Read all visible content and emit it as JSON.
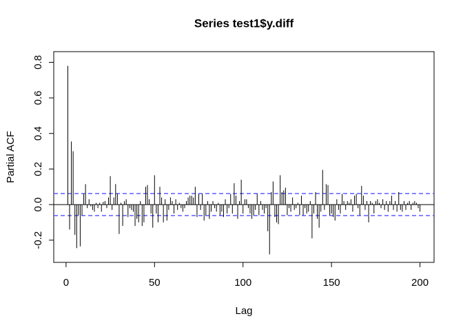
{
  "chart_data": {
    "type": "pacf",
    "title": "Series  test1$y.diff",
    "xlabel": "Lag",
    "ylabel": "Partial ACF",
    "x": [
      1,
      2,
      3,
      4,
      5,
      6,
      7,
      8,
      9,
      10,
      11,
      12,
      13,
      14,
      15,
      16,
      17,
      18,
      19,
      20,
      21,
      22,
      23,
      24,
      25,
      26,
      27,
      28,
      29,
      30,
      31,
      32,
      33,
      34,
      35,
      36,
      37,
      38,
      39,
      40,
      41,
      42,
      43,
      44,
      45,
      46,
      47,
      48,
      49,
      50,
      51,
      52,
      53,
      54,
      55,
      56,
      57,
      58,
      59,
      60,
      61,
      62,
      63,
      64,
      65,
      66,
      67,
      68,
      69,
      70,
      71,
      72,
      73,
      74,
      75,
      76,
      77,
      78,
      79,
      80,
      81,
      82,
      83,
      84,
      85,
      86,
      87,
      88,
      89,
      90,
      91,
      92,
      93,
      94,
      95,
      96,
      97,
      98,
      99,
      100,
      101,
      102,
      103,
      104,
      105,
      106,
      107,
      108,
      109,
      110,
      111,
      112,
      113,
      114,
      115,
      116,
      117,
      118,
      119,
      120,
      121,
      122,
      123,
      124,
      125,
      126,
      127,
      128,
      129,
      130,
      131,
      132,
      133,
      134,
      135,
      136,
      137,
      138,
      139,
      140,
      141,
      142,
      143,
      144,
      145,
      146,
      147,
      148,
      149,
      150,
      151,
      152,
      153,
      154,
      155,
      156,
      157,
      158,
      159,
      160,
      161,
      162,
      163,
      164,
      165,
      166,
      167,
      168,
      169,
      170,
      171,
      172,
      173,
      174,
      175,
      176,
      177,
      178,
      179,
      180,
      181,
      182,
      183,
      184,
      185,
      186,
      187,
      188,
      189,
      190,
      191,
      192,
      193,
      194,
      195,
      196,
      197,
      198,
      199,
      200
    ],
    "values": [
      0.78,
      -0.14,
      0.355,
      0.3,
      -0.17,
      -0.245,
      -0.06,
      -0.235,
      -0.06,
      0.06,
      0.115,
      -0.02,
      0.03,
      -0.01,
      -0.03,
      -0.04,
      0.01,
      -0.02,
      0.01,
      -0.04,
      0.015,
      0.02,
      -0.02,
      0.04,
      0.16,
      -0.03,
      0.04,
      0.115,
      0.06,
      -0.165,
      0.01,
      -0.12,
      0.02,
      0.03,
      -0.07,
      -0.02,
      -0.03,
      -0.04,
      -0.12,
      -0.08,
      -0.1,
      0.02,
      -0.12,
      -0.1,
      0.1,
      0.11,
      0.03,
      -0.05,
      -0.13,
      0.165,
      -0.05,
      -0.1,
      0.1,
      0.04,
      -0.1,
      0.03,
      -0.09,
      -0.03,
      0.04,
      0.02,
      -0.05,
      0.03,
      -0.03,
      0.01,
      -0.02,
      -0.04,
      -0.02,
      0.02,
      0.04,
      0.05,
      0.05,
      0.04,
      0.1,
      -0.07,
      0.06,
      -0.03,
      0.06,
      -0.09,
      -0.06,
      0.02,
      -0.08,
      -0.04,
      0.02,
      -0.02,
      -0.04,
      0.01,
      -0.06,
      -0.04,
      -0.07,
      0.03,
      -0.05,
      -0.02,
      0.06,
      -0.05,
      0.12,
      0.05,
      -0.08,
      0.02,
      0.14,
      -0.05,
      0.03,
      0.03,
      -0.02,
      -0.05,
      -0.08,
      -0.06,
      -0.03,
      0.06,
      -0.06,
      0.02,
      -0.03,
      -0.05,
      -0.02,
      -0.15,
      -0.28,
      0.07,
      0.13,
      -0.07,
      -0.1,
      -0.11,
      0.165,
      0.07,
      0.08,
      0.095,
      -0.06,
      -0.02,
      -0.04,
      0.04,
      -0.03,
      -0.02,
      0.01,
      -0.06,
      0.05,
      -0.06,
      -0.02,
      -0.05,
      -0.04,
      0.02,
      -0.19,
      -0.05,
      0.07,
      -0.08,
      -0.13,
      -0.04,
      0.195,
      -0.03,
      0.115,
      0.11,
      -0.06,
      -0.05,
      -0.07,
      -0.09,
      0.03,
      -0.03,
      -0.05,
      0.06,
      0.02,
      -0.03,
      0.02,
      0.01,
      0.03,
      -0.04,
      0.05,
      0.06,
      -0.02,
      -0.06,
      0.105,
      0.05,
      -0.03,
      0.02,
      -0.1,
      0.02,
      0.01,
      -0.05,
      0.02,
      0.03,
      0.01,
      -0.02,
      0.03,
      -0.03,
      0.02,
      -0.04,
      0.02,
      0.05,
      -0.03,
      0.02,
      -0.04,
      0.07,
      -0.03,
      -0.04,
      0.02,
      -0.03,
      0.01,
      0.02,
      -0.03,
      0.01,
      0.02,
      0.01,
      -0.02,
      -0.04
    ],
    "color": "#000000",
    "ci_lines": [
      0.062,
      -0.062
    ],
    "ci_color": "#4d4dff",
    "xlim": [
      -6.96,
      207.96
    ],
    "ylim": [
      -0.325,
      0.86
    ],
    "xticks": [
      0,
      50,
      100,
      150,
      200
    ],
    "yticks": [
      -0.2,
      {
        "value": 0,
        "label": "0.0"
      },
      0.2,
      0.4,
      0.6,
      0.8
    ]
  }
}
